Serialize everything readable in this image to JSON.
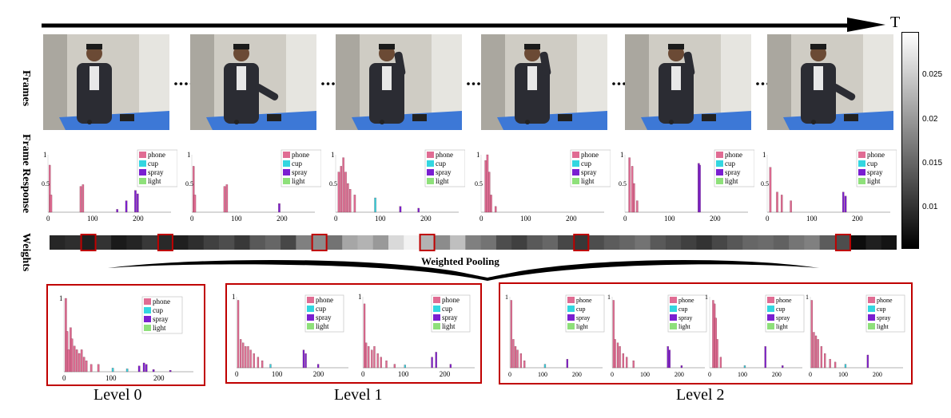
{
  "time_label": "T",
  "row_labels": {
    "frames": "Frames",
    "frame_response": "Frame Response",
    "weights": "Weights"
  },
  "pooling_label": "Weighted Pooling",
  "levels": [
    "Level 0",
    "Level 1",
    "Level 2"
  ],
  "colorbar": {
    "ticks": [
      "0.025",
      "0.02",
      "0.015",
      "0.01"
    ]
  },
  "legend": [
    "phone",
    "cup",
    "spray",
    "light"
  ],
  "colors": {
    "phone": "#e06c93",
    "cup": "#33d6e0",
    "spray": "#7a1fd1",
    "light": "#8ee07a",
    "box": "#c00000"
  },
  "axis_ticks": {
    "y": [
      "0",
      "0.5",
      "1"
    ],
    "x": [
      "0",
      "100",
      "200"
    ]
  },
  "weights": [
    0.15,
    0.18,
    0.12,
    0.2,
    0.1,
    0.14,
    0.22,
    0.16,
    0.12,
    0.18,
    0.25,
    0.3,
    0.22,
    0.35,
    0.4,
    0.28,
    0.5,
    0.55,
    0.45,
    0.65,
    0.7,
    0.6,
    0.85,
    0.95,
    0.7,
    0.55,
    0.75,
    0.5,
    0.45,
    0.3,
    0.25,
    0.35,
    0.4,
    0.28,
    0.22,
    0.3,
    0.36,
    0.4,
    0.45,
    0.35,
    0.3,
    0.25,
    0.2,
    0.28,
    0.34,
    0.4,
    0.42,
    0.38,
    0.46,
    0.5,
    0.36,
    0.3,
    0.05,
    0.12,
    0.08
  ]
}
